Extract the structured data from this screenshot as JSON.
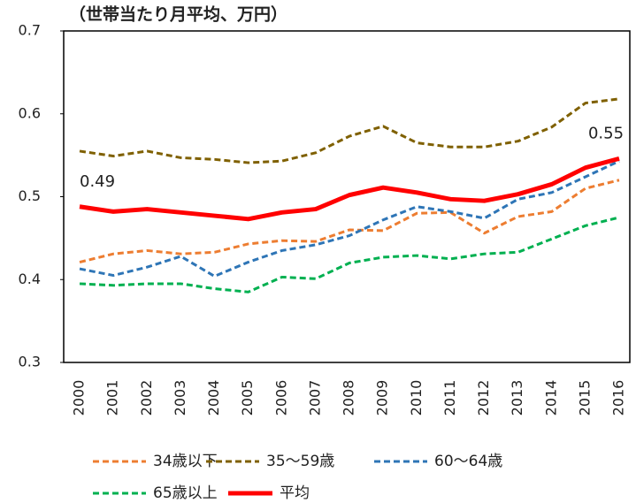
{
  "chart_data": {
    "type": "line",
    "subtitle": "（世帯当たり月平均、万円）",
    "categories": [
      "2000",
      "2001",
      "2002",
      "2003",
      "2004",
      "2005",
      "2006",
      "2007",
      "2008",
      "2009",
      "2010",
      "2011",
      "2012",
      "2013",
      "2014",
      "2015",
      "2016"
    ],
    "series": [
      {
        "name": "34歳以下",
        "color": "#ed7d31",
        "dashed": true,
        "values": [
          0.421,
          0.431,
          0.435,
          0.431,
          0.433,
          0.443,
          0.447,
          0.446,
          0.46,
          0.459,
          0.48,
          0.481,
          0.456,
          0.476,
          0.482,
          0.51,
          0.52
        ]
      },
      {
        "name": "35〜59歳",
        "color": "#7f6000",
        "dashed": true,
        "values": [
          0.555,
          0.549,
          0.555,
          0.547,
          0.545,
          0.541,
          0.543,
          0.553,
          0.573,
          0.585,
          0.565,
          0.56,
          0.56,
          0.567,
          0.584,
          0.613,
          0.618
        ]
      },
      {
        "name": "60〜64歳",
        "color": "#2e75b6",
        "dashed": true,
        "values": [
          0.413,
          0.405,
          0.415,
          0.428,
          0.404,
          0.421,
          0.435,
          0.442,
          0.453,
          0.472,
          0.488,
          0.482,
          0.474,
          0.497,
          0.505,
          0.524,
          0.543
        ]
      },
      {
        "name": "65歳以上",
        "color": "#00b050",
        "dashed": true,
        "values": [
          0.395,
          0.393,
          0.395,
          0.395,
          0.389,
          0.385,
          0.403,
          0.401,
          0.42,
          0.427,
          0.429,
          0.425,
          0.431,
          0.433,
          0.449,
          0.465,
          0.475
        ]
      },
      {
        "name": "平均",
        "color": "#ff0000",
        "dashed": false,
        "values": [
          0.488,
          0.482,
          0.485,
          0.481,
          0.477,
          0.473,
          0.481,
          0.485,
          0.502,
          0.511,
          0.505,
          0.497,
          0.495,
          0.503,
          0.515,
          0.535,
          0.546
        ],
        "value_labels": [
          "0.49",
          null,
          null,
          null,
          null,
          null,
          null,
          null,
          null,
          null,
          null,
          null,
          null,
          null,
          null,
          null,
          "0.55"
        ]
      }
    ],
    "ylim": [
      0.3,
      0.7
    ],
    "yticks": [
      0.3,
      0.4,
      0.5,
      0.6,
      0.7
    ],
    "grid": false
  }
}
